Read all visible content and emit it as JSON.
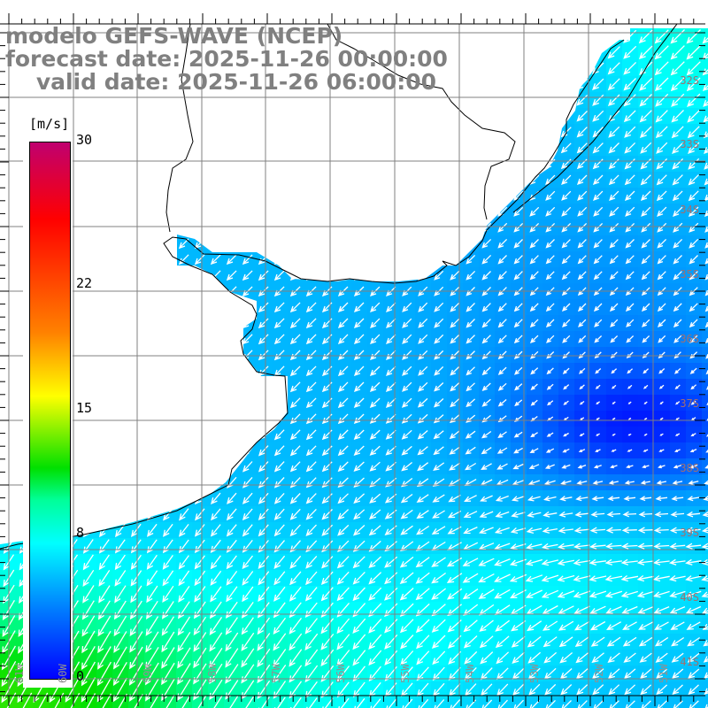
{
  "title": {
    "line1": "modelo GEFS-WAVE (NCEP)",
    "line2": "forecast date: 2025-11-26 00:00:00",
    "line3": "    valid date: 2025-11-26 06:00:00"
  },
  "colorbar": {
    "unit": "[m/s]",
    "ticks": [
      {
        "label": "30",
        "value": 30
      },
      {
        "label": "22",
        "value": 22
      },
      {
        "label": "15",
        "value": 15
      },
      {
        "label": "8",
        "value": 8
      },
      {
        "label": "0",
        "value": 0
      }
    ],
    "range": [
      0,
      30
    ],
    "stops": [
      {
        "value": 0,
        "color": "#0000ff"
      },
      {
        "value": 4,
        "color": "#0080ff"
      },
      {
        "value": 7.6,
        "color": "#00ffff"
      },
      {
        "value": 10,
        "color": "#00ff99"
      },
      {
        "value": 11.8,
        "color": "#00e000"
      },
      {
        "value": 15.8,
        "color": "#ffff00"
      },
      {
        "value": 19.4,
        "color": "#ff8000"
      },
      {
        "value": 25.7,
        "color": "#ff0000"
      },
      {
        "value": 30,
        "color": "#c0006f"
      }
    ]
  },
  "latitude_labels": [
    "32S",
    "33S",
    "34S",
    "35S",
    "36S",
    "37S",
    "38S",
    "39S",
    "40S",
    "41S"
  ],
  "longitude_labels": [
    "61W",
    "60W",
    "59W",
    "58W",
    "57W",
    "56W",
    "55W",
    "54W",
    "53W",
    "52W",
    "51W"
  ],
  "colors": {
    "grid": "#808080",
    "coast": "#000000",
    "land": "#ffffff",
    "arrow": "#ffffff",
    "title": "#808080"
  }
}
